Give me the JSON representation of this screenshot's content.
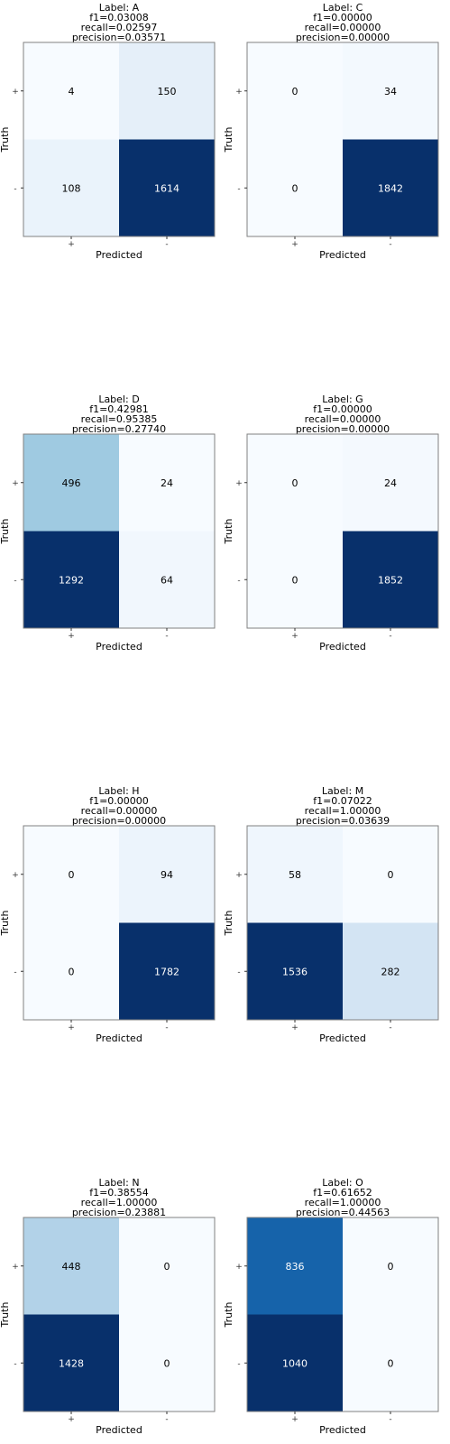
{
  "figure": {
    "y_axis_label": "Truth",
    "x_axis_label": "Predicted",
    "row_tick_labels": [
      "+",
      "-"
    ],
    "col_tick_labels": [
      "+",
      "-"
    ]
  },
  "chart_data": [
    {
      "type": "heatmap",
      "label": "Label: A",
      "f1": "f1=0.03008",
      "recall": "recall=0.02597",
      "precision": "precision=0.03571",
      "rows": [
        "+",
        "-"
      ],
      "cols": [
        "+",
        "-"
      ],
      "xlabel": "Predicted",
      "ylabel": "Truth",
      "values": [
        [
          4,
          150
        ],
        [
          108,
          1614
        ]
      ]
    },
    {
      "type": "heatmap",
      "label": "Label: C",
      "f1": "f1=0.00000",
      "recall": "recall=0.00000",
      "precision": "precision=0.00000",
      "rows": [
        "+",
        "-"
      ],
      "cols": [
        "+",
        "-"
      ],
      "xlabel": "Predicted",
      "ylabel": "Truth",
      "values": [
        [
          0,
          34
        ],
        [
          0,
          1842
        ]
      ]
    },
    {
      "type": "heatmap",
      "label": "Label: D",
      "f1": "f1=0.42981",
      "recall": "recall=0.95385",
      "precision": "precision=0.27740",
      "rows": [
        "+",
        "-"
      ],
      "cols": [
        "+",
        "-"
      ],
      "xlabel": "Predicted",
      "ylabel": "Truth",
      "values": [
        [
          496,
          24
        ],
        [
          1292,
          64
        ]
      ]
    },
    {
      "type": "heatmap",
      "label": "Label: G",
      "f1": "f1=0.00000",
      "recall": "recall=0.00000",
      "precision": "precision=0.00000",
      "rows": [
        "+",
        "-"
      ],
      "cols": [
        "+",
        "-"
      ],
      "xlabel": "Predicted",
      "ylabel": "Truth",
      "values": [
        [
          0,
          24
        ],
        [
          0,
          1852
        ]
      ]
    },
    {
      "type": "heatmap",
      "label": "Label: H",
      "f1": "f1=0.00000",
      "recall": "recall=0.00000",
      "precision": "precision=0.00000",
      "rows": [
        "+",
        "-"
      ],
      "cols": [
        "+",
        "-"
      ],
      "xlabel": "Predicted",
      "ylabel": "Truth",
      "values": [
        [
          0,
          94
        ],
        [
          0,
          1782
        ]
      ]
    },
    {
      "type": "heatmap",
      "label": "Label: M",
      "f1": "f1=0.07022",
      "recall": "recall=1.00000",
      "precision": "precision=0.03639",
      "rows": [
        "+",
        "-"
      ],
      "cols": [
        "+",
        "-"
      ],
      "xlabel": "Predicted",
      "ylabel": "Truth",
      "values": [
        [
          58,
          0
        ],
        [
          1536,
          282
        ]
      ]
    },
    {
      "type": "heatmap",
      "label": "Label: N",
      "f1": "f1=0.38554",
      "recall": "recall=1.00000",
      "precision": "precision=0.23881",
      "rows": [
        "+",
        "-"
      ],
      "cols": [
        "+",
        "-"
      ],
      "xlabel": "Predicted",
      "ylabel": "Truth",
      "values": [
        [
          448,
          0
        ],
        [
          1428,
          0
        ]
      ]
    },
    {
      "type": "heatmap",
      "label": "Label: O",
      "f1": "f1=0.61652",
      "recall": "recall=1.00000",
      "precision": "precision=0.44563",
      "rows": [
        "+",
        "-"
      ],
      "cols": [
        "+",
        "-"
      ],
      "xlabel": "Predicted",
      "ylabel": "Truth",
      "values": [
        [
          836,
          0
        ],
        [
          1040,
          0
        ]
      ]
    }
  ],
  "colors": {
    "colormap": "Blues",
    "low": "#f7fbff",
    "high": "#08306b",
    "text_dark": "#000000",
    "text_light": "#ffffff",
    "frame": "#808080",
    "tick_text": "#333333"
  }
}
